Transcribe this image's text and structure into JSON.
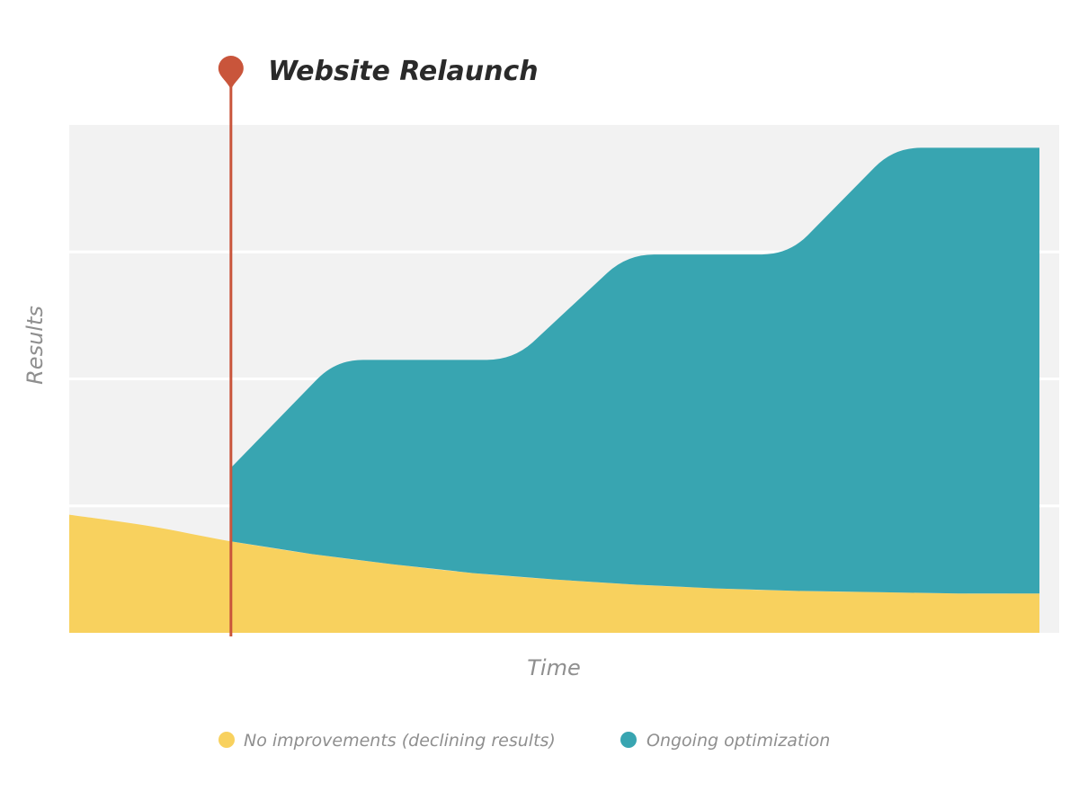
{
  "chart_data": {
    "type": "area",
    "xlabel": "Time",
    "ylabel": "Results",
    "xlim": [
      0,
      12
    ],
    "ylim": [
      0,
      4
    ],
    "grid": true,
    "legend_position": "bottom",
    "event": {
      "label": "Website Relaunch",
      "x": 2,
      "color": "#c9553b"
    },
    "series": [
      {
        "name": "No improvements (declining results)",
        "color": "#f8d15e",
        "x": [
          0,
          1,
          2,
          3,
          4,
          5,
          6,
          7,
          8,
          9,
          10,
          11,
          12
        ],
        "values": [
          0.93,
          0.84,
          0.72,
          0.62,
          0.54,
          0.47,
          0.42,
          0.38,
          0.35,
          0.33,
          0.32,
          0.31,
          0.31
        ]
      },
      {
        "name": "Ongoing optimization",
        "color": "#38a5b1",
        "x": [
          2,
          3.3,
          5.5,
          6.9,
          8.9,
          10.2,
          12
        ],
        "values": [
          1.3,
          2.15,
          2.15,
          2.98,
          2.98,
          3.82,
          3.82
        ]
      }
    ]
  }
}
